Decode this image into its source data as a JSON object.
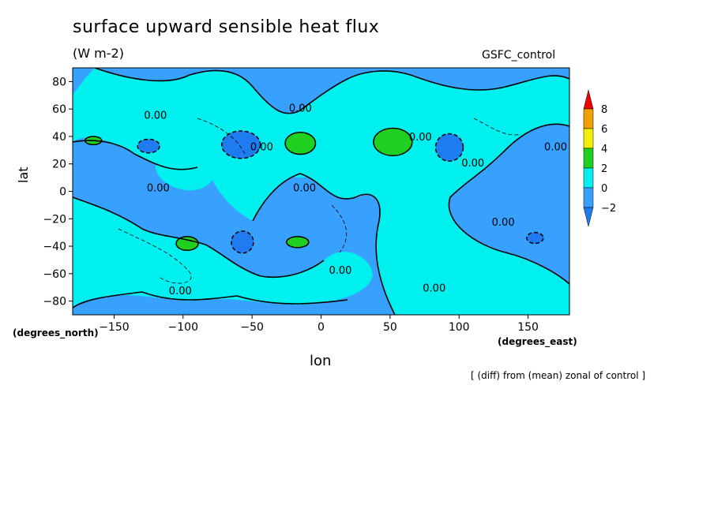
{
  "chart_data": {
    "type": "heatmap",
    "title": "surface upward sensible heat flux",
    "units": "(W m-2)",
    "run_label": "GSFC_control",
    "xlabel": "lon",
    "ylabel": "lat",
    "x_units": "(degrees_east)",
    "y_units": "(degrees_north)",
    "note": "[ (diff) from (mean) zonal of control ]",
    "xlim": [
      -180,
      180
    ],
    "ylim": [
      -90,
      90
    ],
    "x_ticks": [
      -150,
      -100,
      -50,
      0,
      50,
      100,
      150
    ],
    "y_ticks": [
      80,
      60,
      40,
      20,
      0,
      -20,
      -40,
      -60,
      -80
    ],
    "contour_labels": [
      {
        "lon": -120,
        "lat": 53,
        "text": "0.00"
      },
      {
        "lon": -15,
        "lat": 58,
        "text": "0.00"
      },
      {
        "lon": -43,
        "lat": 30,
        "text": "0.00"
      },
      {
        "lon": -118,
        "lat": 0,
        "text": "0.00"
      },
      {
        "lon": -12,
        "lat": 0,
        "text": "0.00"
      },
      {
        "lon": 72,
        "lat": 37,
        "text": "0.00"
      },
      {
        "lon": 110,
        "lat": 18,
        "text": "0.00"
      },
      {
        "lon": 170,
        "lat": 30,
        "text": "0.00"
      },
      {
        "lon": 132,
        "lat": -25,
        "text": "0.00"
      },
      {
        "lon": 14,
        "lat": -60,
        "text": "0.00"
      },
      {
        "lon": -102,
        "lat": -75,
        "text": "0.00"
      },
      {
        "lon": 82,
        "lat": -73,
        "text": "0.00"
      }
    ],
    "colorbar": {
      "levels": [
        -2,
        0,
        2,
        4,
        6,
        8
      ],
      "colors": [
        "#1f7bf0",
        "#38a0ff",
        "#00f0f0",
        "#20d020",
        "#f0f000",
        "#f0a000",
        "#f00000"
      ]
    },
    "fields": [
      {
        "level": "below -2",
        "color": "#1f7bf0",
        "regions": [
          {
            "lon": -125,
            "lat": 33,
            "rlon": 8,
            "rlat": 5
          },
          {
            "lon": -58,
            "lat": 34,
            "rlon": 14,
            "rlat": 10
          },
          {
            "lon": 93,
            "lat": 32,
            "rlon": 10,
            "rlat": 10
          },
          {
            "lon": -57,
            "lat": -37,
            "rlon": 8,
            "rlat": 8
          },
          {
            "lon": 155,
            "lat": -34,
            "rlon": 6,
            "rlat": 4
          }
        ]
      },
      {
        "level": "2 to 4",
        "color": "#20d020",
        "regions": [
          {
            "lon": -165,
            "lat": 37,
            "rlon": 6,
            "rlat": 3
          },
          {
            "lon": -15,
            "lat": 35,
            "rlon": 11,
            "rlat": 8
          },
          {
            "lon": 52,
            "lat": 36,
            "rlon": 14,
            "rlat": 10
          },
          {
            "lon": -97,
            "lat": -38,
            "rlon": 8,
            "rlat": 5
          },
          {
            "lon": -17,
            "lat": -37,
            "rlon": 8,
            "rlat": 4
          }
        ]
      }
    ]
  }
}
